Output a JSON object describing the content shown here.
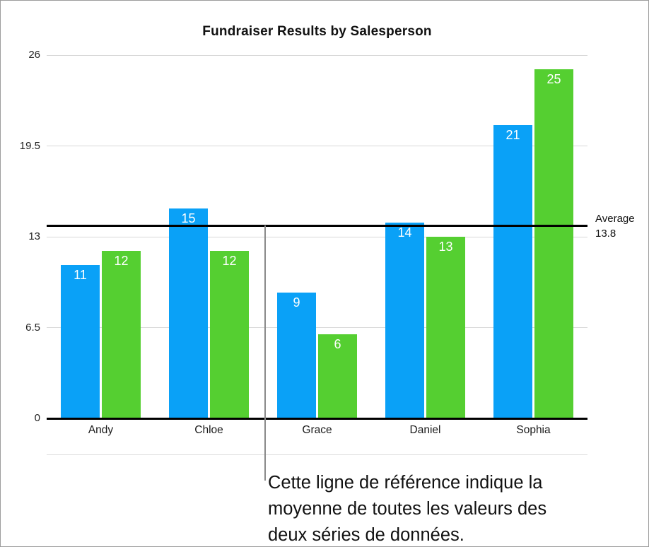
{
  "chart_data": {
    "type": "bar",
    "title": "Fundraiser Results by Salesperson",
    "categories": [
      "Andy",
      "Chloe",
      "Grace",
      "Daniel",
      "Sophia"
    ],
    "series": [
      {
        "name": "series-blue",
        "color": "#0aa1f7",
        "values": [
          11,
          15,
          9,
          14,
          21
        ]
      },
      {
        "name": "series-green",
        "color": "#55cf31",
        "values": [
          12,
          12,
          6,
          13,
          25
        ]
      }
    ],
    "ylim": [
      0,
      26
    ],
    "yticks": [
      0,
      6.5,
      13,
      19.5,
      26
    ],
    "grid": true,
    "legend": "none",
    "value_labels": "inside-top-white",
    "reference_line": {
      "value": 13.8,
      "label": "Average",
      "value_text": "13.8",
      "color": "#000000"
    }
  },
  "callout": {
    "text": "Cette ligne de référence indique la moyenne de toutes les valeurs des deux séries de données.",
    "lines": [
      "Cette ligne de référence indique la",
      "moyenne de toutes les valeurs des",
      "deux séries de données."
    ],
    "line_color": "#8a8a8a"
  }
}
